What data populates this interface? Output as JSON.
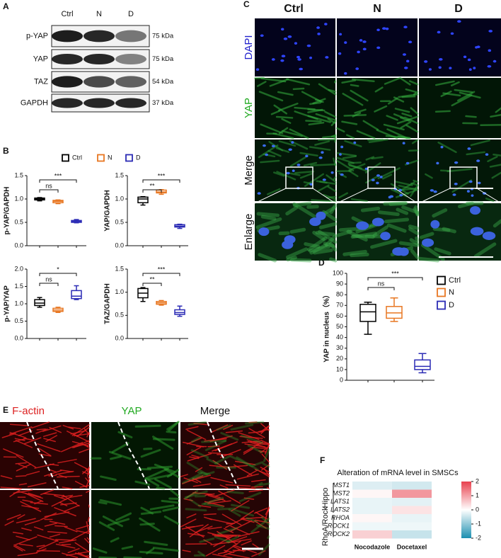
{
  "panel_labels": [
    "A",
    "B",
    "C",
    "D",
    "E",
    "F"
  ],
  "blot": {
    "lanes": [
      "Ctrl",
      "N",
      "D"
    ],
    "rows": [
      {
        "protein": "p-YAP",
        "size": "75 kDa"
      },
      {
        "protein": "YAP",
        "size": "75 kDa"
      },
      {
        "protein": "TAZ",
        "size": "54 kDa"
      },
      {
        "protein": "GAPDH",
        "size": "37 kDa"
      }
    ]
  },
  "immunofluorescence": {
    "columns": [
      "Ctrl",
      "N",
      "D"
    ],
    "rows": [
      "DAPI",
      "YAP",
      "Merge",
      "Enlarge"
    ]
  },
  "staining": {
    "columns": [
      "F-actin",
      "YAP",
      "Merge"
    ]
  },
  "chart_data": [
    {
      "type": "box",
      "y_label": "p-YAP/GAPDH",
      "ylim": [
        0,
        1.5
      ],
      "yticks": [
        {
          "value": 0,
          "label": "0.0"
        },
        0.5,
        {
          "value": 1,
          "label": "1.0"
        },
        1.5
      ],
      "legend": "top",
      "series": [
        {
          "name": "Ctrl",
          "color": "#000000",
          "values": [
            0.96,
            0.98,
            1.0,
            1.02,
            1.03
          ]
        },
        {
          "name": "N",
          "color": "#e87722",
          "values": [
            0.9,
            0.92,
            0.95,
            0.97,
            0.98
          ]
        },
        {
          "name": "D",
          "color": "#2b2bb5",
          "values": [
            0.49,
            0.5,
            0.52,
            0.54,
            0.56
          ]
        }
      ],
      "annotations": [
        "ns",
        "***"
      ]
    },
    {
      "type": "box",
      "y_label": "YAP/GAPDH",
      "ylim": [
        0,
        1.5
      ],
      "yticks": [
        {
          "value": 0,
          "label": "0.0"
        },
        0.5,
        {
          "value": 1,
          "label": "1.0"
        },
        1.5
      ],
      "series": [
        {
          "color": "#000000",
          "values": [
            0.87,
            0.92,
            1.0,
            1.04,
            1.05
          ]
        },
        {
          "color": "#e87722",
          "values": [
            1.1,
            1.13,
            1.15,
            1.19,
            1.2
          ]
        },
        {
          "color": "#2b2bb5",
          "values": [
            0.37,
            0.4,
            0.42,
            0.45,
            0.46
          ]
        }
      ],
      "annotations": [
        "**",
        "***"
      ]
    },
    {
      "type": "box",
      "y_label": "p-YAP/YAP",
      "ylim": [
        0,
        2
      ],
      "yticks": [
        {
          "value": 0,
          "label": "0.0"
        },
        0.5,
        {
          "value": 1,
          "label": "1.0"
        },
        1.5,
        {
          "value": 2,
          "label": "2.0"
        }
      ],
      "series": [
        {
          "color": "#000000",
          "values": [
            0.9,
            0.95,
            1.02,
            1.12,
            1.18
          ]
        },
        {
          "color": "#e87722",
          "values": [
            0.75,
            0.78,
            0.82,
            0.87,
            0.9
          ]
        },
        {
          "color": "#2b2bb5",
          "values": [
            1.12,
            1.15,
            1.22,
            1.38,
            1.52
          ]
        }
      ],
      "annotations": [
        "ns",
        "*"
      ]
    },
    {
      "type": "box",
      "y_label": "TAZ/GAPDH",
      "ylim": [
        0,
        1.5
      ],
      "yticks": [
        {
          "value": 0,
          "label": "0.0"
        },
        0.5,
        {
          "value": 1,
          "label": "1.0"
        },
        1.5
      ],
      "series": [
        {
          "color": "#000000",
          "values": [
            0.8,
            0.88,
            0.98,
            1.08,
            1.1
          ]
        },
        {
          "color": "#e87722",
          "values": [
            0.72,
            0.74,
            0.77,
            0.8,
            0.82
          ]
        },
        {
          "color": "#2b2bb5",
          "values": [
            0.48,
            0.52,
            0.56,
            0.62,
            0.7
          ]
        }
      ],
      "annotations": [
        "**",
        "***"
      ]
    },
    {
      "type": "box",
      "y_label": "YAP in nucleus（%）",
      "ylim": [
        0,
        100
      ],
      "yticks": [
        0,
        10,
        20,
        30,
        40,
        50,
        60,
        70,
        80,
        90,
        100
      ],
      "legend": "right",
      "series": [
        {
          "name": "Ctrl",
          "color": "#000000",
          "values": [
            43,
            55,
            64,
            71,
            73
          ]
        },
        {
          "name": "N",
          "color": "#e87722",
          "values": [
            55,
            58,
            63,
            69,
            77
          ]
        },
        {
          "name": "D",
          "color": "#2b2bb5",
          "values": [
            7,
            10,
            13,
            19,
            25
          ]
        }
      ],
      "annotations": [
        "ns",
        "***"
      ]
    },
    {
      "type": "heatmap",
      "title": "Alteration of mRNA level in SMSCs",
      "rows": [
        "MST1",
        "MST2",
        "LATS1",
        "LATS2",
        "RHOA",
        "ROCK1",
        "ROCK2"
      ],
      "columns": [
        "Nocodazole",
        "Docetaxel"
      ],
      "groups": [
        {
          "name": "Hippo",
          "size": 4
        },
        {
          "name": "RhoA/Rock",
          "size": 3
        }
      ],
      "values": [
        [
          -0.3,
          -0.4
        ],
        [
          0.1,
          1.1
        ],
        [
          -0.2,
          -0.25
        ],
        [
          -0.2,
          0.3
        ],
        [
          0.1,
          -0.2
        ],
        [
          -0.15,
          -0.15
        ],
        [
          0.5,
          -0.5
        ]
      ],
      "zlim": [
        -2,
        2
      ],
      "zticks": [
        2,
        1,
        0,
        -1,
        -2
      ],
      "colors": [
        "#1c8fb0",
        "#ffffff",
        "#e8414e"
      ]
    }
  ]
}
